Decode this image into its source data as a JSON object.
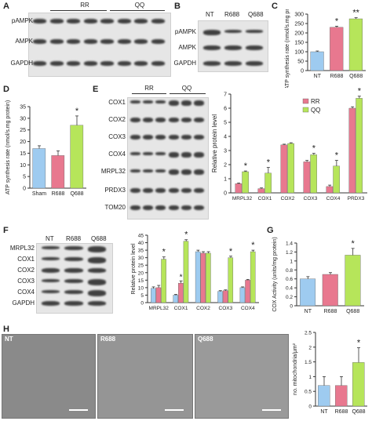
{
  "panels": {
    "A": {
      "label": "A",
      "groups": [
        "RR",
        "QQ"
      ],
      "rows": [
        "pAMPK",
        "AMPK",
        "GAPDH"
      ]
    },
    "B": {
      "label": "B",
      "lanes": [
        "NT",
        "R688",
        "Q688"
      ],
      "rows": [
        "pAMPK",
        "AMPK",
        "GAPDH"
      ]
    },
    "C": {
      "label": "C",
      "ylabel": "ATP synthesis rate (nmol/s.mg protein)",
      "star": "*",
      "star2": "**"
    },
    "D": {
      "label": "D",
      "ylabel": "ATP synthesis rate (nmol/s.mg protein)",
      "star": "*"
    },
    "E": {
      "label": "E",
      "groups": [
        "RR",
        "QQ"
      ],
      "rows": [
        "COX1",
        "COX2",
        "COX3",
        "COX4",
        "MRPL32",
        "PRDX3",
        "TOM20"
      ],
      "ylabel": "Relative protein level",
      "legend": [
        "RR",
        "QQ"
      ],
      "star": "*"
    },
    "F": {
      "label": "F",
      "lanes": [
        "NT",
        "R688",
        "Q688"
      ],
      "rows": [
        "MRPL32",
        "COX1",
        "COX2",
        "COX3",
        "COX4",
        "GAPDH"
      ],
      "ylabel": "Relative protein level",
      "star": "*"
    },
    "G": {
      "label": "G",
      "ylabel": "COX Activity (units/mg protein)",
      "star": "*"
    },
    "H": {
      "label": "H",
      "images": [
        "NT",
        "R688",
        "Q688"
      ],
      "ylabel": "no. mitochondria/μm²",
      "star": "*"
    }
  },
  "colors": {
    "blue": "#9ecbf0",
    "red": "#e8788f",
    "green": "#b6e55a"
  },
  "chart_data": [
    {
      "id": "C",
      "type": "bar",
      "categories": [
        "NT",
        "R688",
        "Q688"
      ],
      "values": [
        100,
        230,
        275
      ],
      "errors": [
        4,
        6,
        6
      ],
      "ylim": [
        0,
        300
      ],
      "yticks": [
        0,
        50,
        100,
        150,
        200,
        250,
        300
      ],
      "ylabel": "ATP synthesis rate (nmol/s.mg protein)",
      "colors": [
        "#9ecbf0",
        "#e8788f",
        "#b6e55a"
      ],
      "annotations": [
        "",
        "*",
        "**"
      ]
    },
    {
      "id": "D",
      "type": "bar",
      "categories": [
        "Sham",
        "R688",
        "Q688"
      ],
      "values": [
        17,
        14,
        27
      ],
      "errors": [
        1.2,
        2,
        4
      ],
      "ylim": [
        0,
        35
      ],
      "yticks": [
        0,
        5,
        10,
        15,
        20,
        25,
        30,
        35
      ],
      "ylabel": "ATP synthesis rate (nmol/s.mg protein)",
      "colors": [
        "#9ecbf0",
        "#e8788f",
        "#b6e55a"
      ],
      "annotations": [
        "",
        "",
        "*"
      ]
    },
    {
      "id": "E",
      "type": "bar",
      "categories": [
        "MRPL32",
        "COX1",
        "COX2",
        "COX3",
        "COX4",
        "PRDX3"
      ],
      "series": [
        {
          "name": "RR",
          "values": [
            0.65,
            0.3,
            3.4,
            2.2,
            0.45,
            6.0
          ],
          "errors": [
            0.05,
            0.05,
            0.05,
            0.1,
            0.1,
            0.1
          ],
          "color": "#e8788f"
        },
        {
          "name": "QQ",
          "values": [
            1.5,
            1.4,
            3.5,
            2.7,
            1.9,
            6.7
          ],
          "errors": [
            0.05,
            0.4,
            0.05,
            0.1,
            0.4,
            0.15
          ],
          "color": "#b6e55a"
        }
      ],
      "ylim": [
        0,
        7
      ],
      "yticks": [
        0,
        1,
        2,
        3,
        4,
        5,
        6,
        7
      ],
      "ylabel": "Relative protein level",
      "legend": "top-left",
      "annotations": [
        "*",
        "*",
        "",
        "*",
        "*",
        "*"
      ]
    },
    {
      "id": "F",
      "type": "bar",
      "categories": [
        "MRPL32",
        "COX1",
        "COX2",
        "COX3",
        "COX4"
      ],
      "series": [
        {
          "name": "NT",
          "values": [
            9.5,
            5,
            34,
            7.5,
            10
          ],
          "errors": [
            1,
            0.5,
            1,
            0.5,
            0.5
          ],
          "color": "#9ecbf0"
        },
        {
          "name": "R688",
          "values": [
            10,
            13,
            33,
            8,
            15
          ],
          "errors": [
            1.5,
            1.5,
            1,
            0.5,
            0.5
          ],
          "color": "#e8788f"
        },
        {
          "name": "Q688",
          "values": [
            29,
            41,
            33,
            30,
            34
          ],
          "errors": [
            1.5,
            1,
            1,
            1,
            1
          ],
          "color": "#b6e55a"
        }
      ],
      "ylim": [
        0,
        45
      ],
      "yticks": [
        0,
        5,
        10,
        15,
        20,
        25,
        30,
        35,
        40,
        45
      ],
      "ylabel": "Relative protein level",
      "annotations": [
        "*",
        "*",
        "",
        "*",
        "*"
      ],
      "extra_stars": [
        {
          "category": "COX1",
          "series": "R688"
        }
      ]
    },
    {
      "id": "G",
      "type": "bar",
      "categories": [
        "NT",
        "R688",
        "Q688"
      ],
      "values": [
        0.6,
        0.7,
        1.13
      ],
      "errors": [
        0.05,
        0.04,
        0.15
      ],
      "ylim": [
        0,
        1.4
      ],
      "yticks": [
        0,
        0.2,
        0.4,
        0.6,
        0.8,
        1,
        1.2,
        1.4
      ],
      "ylabel": "COX Activity (units/mg protein)",
      "colors": [
        "#9ecbf0",
        "#e8788f",
        "#b6e55a"
      ],
      "annotations": [
        "",
        "",
        "*"
      ]
    },
    {
      "id": "H",
      "type": "bar",
      "categories": [
        "NT",
        "R688",
        "Q688"
      ],
      "values": [
        0.7,
        0.7,
        1.48
      ],
      "errors": [
        0.3,
        0.3,
        0.5
      ],
      "ylim": [
        0,
        2.5
      ],
      "yticks": [
        0,
        0.5,
        1,
        1.5,
        2,
        2.5
      ],
      "ylabel": "no. mitochondria/μm²",
      "colors": [
        "#9ecbf0",
        "#e8788f",
        "#b6e55a"
      ],
      "annotations": [
        "",
        "",
        "*"
      ]
    }
  ]
}
